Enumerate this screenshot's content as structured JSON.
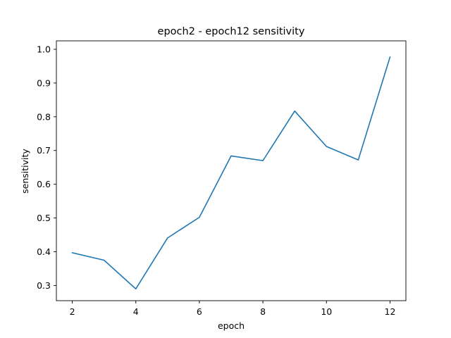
{
  "chart_data": {
    "type": "line",
    "title": "epoch2 - epoch12 sensitivity",
    "xlabel": "epoch",
    "ylabel": "sensitivity",
    "xlim": [
      1.5,
      12.5
    ],
    "ylim": [
      0.255,
      1.025
    ],
    "xticks": [
      2,
      4,
      6,
      8,
      10,
      12
    ],
    "yticks": [
      0.3,
      0.4,
      0.5,
      0.6,
      0.7,
      0.8,
      0.9,
      1.0
    ],
    "ytick_labels": [
      "0.3",
      "0.4",
      "0.5",
      "0.6",
      "0.7",
      "0.8",
      "0.9",
      "1.0"
    ],
    "grid": false,
    "series": [
      {
        "color": "#1f77b4",
        "x": [
          2,
          3,
          4,
          5,
          6,
          7,
          8,
          9,
          10,
          11,
          12
        ],
        "y": [
          0.397,
          0.375,
          0.29,
          0.441,
          0.502,
          0.684,
          0.67,
          0.817,
          0.712,
          0.672,
          0.977
        ]
      }
    ]
  }
}
